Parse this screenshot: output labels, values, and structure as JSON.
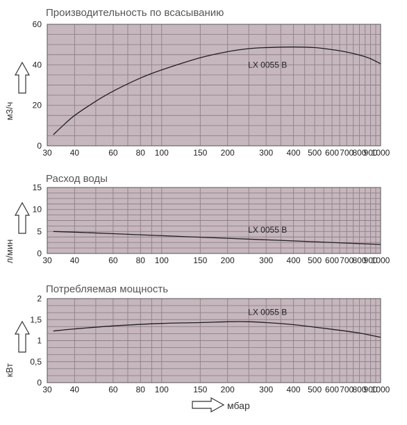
{
  "x_ticks": [
    {
      "v": 30,
      "label": "30"
    },
    {
      "v": 40,
      "label": "40"
    },
    {
      "v": 60,
      "label": "60"
    },
    {
      "v": 80,
      "label": "80"
    },
    {
      "v": 100,
      "label": "100"
    },
    {
      "v": 150,
      "label": "150"
    },
    {
      "v": 200,
      "label": "200"
    },
    {
      "v": 300,
      "label": "300"
    },
    {
      "v": 400,
      "label": "400"
    },
    {
      "v": 500,
      "label": "500"
    },
    {
      "v": 600,
      "label": "600"
    },
    {
      "v": 700,
      "label": "700"
    },
    {
      "v": 800,
      "label": "800"
    },
    {
      "v": 900,
      "label": "900"
    },
    {
      "v": 1000,
      "label": "1000"
    }
  ],
  "x_unit_label": "мбар",
  "colors": {
    "plot_bg": "#c6b6bd",
    "grid": "#8f8088",
    "line": "#1e1e1e",
    "frame": "#555555"
  },
  "chart_data": [
    {
      "type": "line",
      "title": "Производительность по всасыванию",
      "ylabel": "м3/ч",
      "x_scale": "log",
      "xlim": [
        30,
        1000
      ],
      "ylim": [
        0,
        60
      ],
      "yticks": [
        {
          "v": 0,
          "label": "0"
        },
        {
          "v": 20,
          "label": "20"
        },
        {
          "v": 40,
          "label": "40"
        },
        {
          "v": 60,
          "label": "60"
        }
      ],
      "series": [
        {
          "name": "LX 0055 B",
          "label_at": [
            300,
            40
          ],
          "x": [
            32,
            35,
            40,
            50,
            60,
            80,
            100,
            150,
            200,
            250,
            300,
            400,
            500,
            600,
            700,
            800,
            900,
            1000
          ],
          "y": [
            5.5,
            9.5,
            15,
            22,
            27,
            33.5,
            37.5,
            43.5,
            46.5,
            48,
            48.5,
            48.8,
            48.5,
            47.5,
            46.3,
            44.8,
            43,
            40.5
          ]
        }
      ]
    },
    {
      "type": "line",
      "title": "Расход воды",
      "ylabel": "л/мин",
      "x_scale": "log",
      "xlim": [
        30,
        1000
      ],
      "ylim": [
        0,
        15
      ],
      "yticks": [
        {
          "v": 0,
          "label": "0"
        },
        {
          "v": 5,
          "label": "5"
        },
        {
          "v": 10,
          "label": "10"
        },
        {
          "v": 15,
          "label": "15"
        }
      ],
      "series": [
        {
          "name": "LX 0055 B",
          "label_at": [
            300,
            5.4
          ],
          "x": [
            32,
            40,
            60,
            100,
            200,
            400,
            700,
            1000
          ],
          "y": [
            5,
            4.85,
            4.5,
            4.05,
            3.45,
            2.85,
            2.35,
            2.05
          ]
        }
      ]
    },
    {
      "type": "line",
      "title": "Потребляемая мощность",
      "ylabel": "кВт",
      "x_scale": "log",
      "xlim": [
        30,
        1000
      ],
      "ylim": [
        0,
        2
      ],
      "yticks": [
        {
          "v": 0,
          "label": "0"
        },
        {
          "v": 0.5,
          "label": "0,5"
        },
        {
          "v": 1,
          "label": "1"
        },
        {
          "v": 1.5,
          "label": "1,5"
        },
        {
          "v": 2,
          "label": "2"
        }
      ],
      "series": [
        {
          "name": "LX 0055 B",
          "label_at": [
            300,
            1.68
          ],
          "x": [
            32,
            40,
            60,
            100,
            150,
            200,
            250,
            300,
            400,
            500,
            600,
            800,
            1000
          ],
          "y": [
            1.23,
            1.28,
            1.35,
            1.41,
            1.43,
            1.45,
            1.45,
            1.43,
            1.38,
            1.32,
            1.27,
            1.18,
            1.08
          ]
        }
      ]
    }
  ]
}
